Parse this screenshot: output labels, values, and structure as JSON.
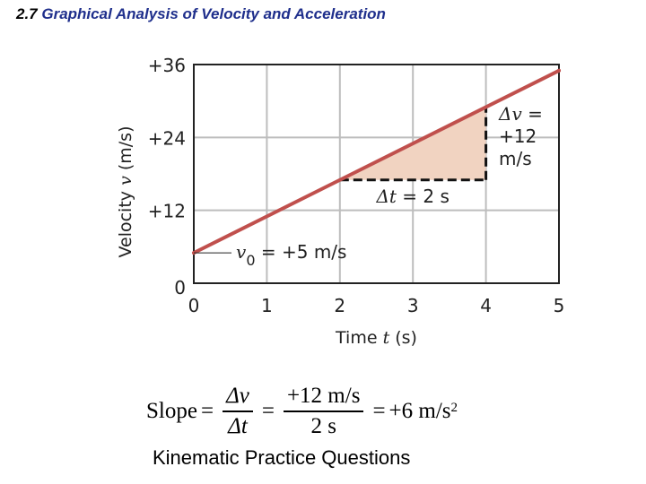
{
  "slide": {
    "title_number": "2.7",
    "title_text": "Graphical Analysis of Velocity and Acceleration",
    "footer": "Kinematic Practice Questions"
  },
  "chart_data": {
    "type": "line",
    "x": [
      0,
      5
    ],
    "series": [
      {
        "values": [
          5,
          35
        ]
      }
    ],
    "xticks": [
      "0",
      "1",
      "2",
      "3",
      "4",
      "5"
    ],
    "yticks": [
      "0",
      "+12",
      "+24",
      "+36"
    ],
    "ytick_values": [
      0,
      12,
      24,
      36
    ],
    "xlim": [
      0,
      5
    ],
    "ylim": [
      0,
      36
    ],
    "grid": true,
    "xlabel": {
      "pre": "Time ",
      "sym": "t",
      "post": " (s)"
    },
    "ylabel": {
      "pre": "Velocity ",
      "sym": "v",
      "post": " (m/s)"
    },
    "triangle": {
      "x0": 2,
      "x1": 4,
      "y0": 17,
      "y1": 29
    },
    "annotations": {
      "dv_line1_sym": "Δv",
      "dv_line1_eq": " =",
      "dv_line2": "+12",
      "dv_line3": "m/s",
      "dt_sym": "Δt",
      "dt_rest": " = 2 s",
      "v0_sym": "v",
      "v0_sub": "0",
      "v0_rest": " = +5 m/s"
    },
    "colors": {
      "line": "#c0504d",
      "fill": "#f1d3c1",
      "grid": "#bdbdbd",
      "frame": "#222222"
    }
  },
  "formula": {
    "slope": "Slope",
    "eq1": "=",
    "num1": "Δv",
    "den1": "Δt",
    "eq2": "=",
    "num2": "+12 m/s",
    "den2": "2 s",
    "eq3": "=",
    "result": "+6 m/s",
    "exp": "2"
  }
}
